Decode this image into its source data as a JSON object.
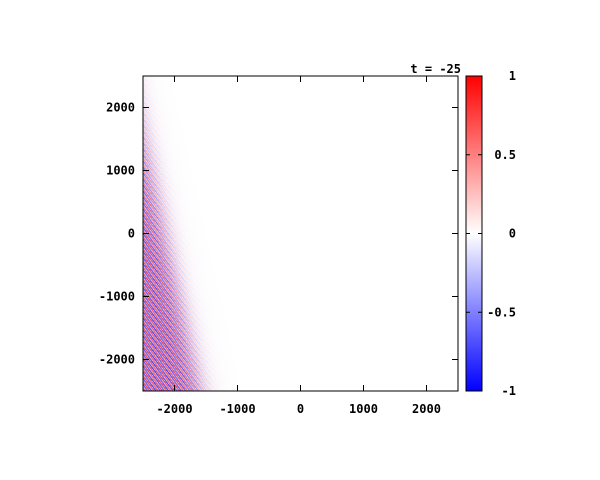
{
  "chart_data": {
    "type": "heatmap",
    "title": "t = -25",
    "xlabel": "",
    "ylabel": "",
    "xlim": [
      -2500,
      2500
    ],
    "ylim": [
      -2500,
      2500
    ],
    "x_ticks": [
      -2000,
      -1000,
      0,
      1000,
      2000
    ],
    "x_tick_labels": [
      "-2000",
      "-1000",
      "0",
      "1000",
      "2000"
    ],
    "y_ticks": [
      -2000,
      -1000,
      0,
      1000,
      2000
    ],
    "y_tick_labels": [
      "-2000",
      "-1000",
      "0",
      "1000",
      "2000"
    ],
    "grid": false,
    "colorbar": {
      "range": [
        -1,
        1
      ],
      "ticks": [
        -1,
        -0.5,
        0,
        0.5,
        1
      ],
      "tick_labels": [
        "-1",
        "-0.5",
        "0",
        "0.5",
        "1"
      ],
      "low_color": "#0000ff",
      "mid_color": "#ffffff",
      "high_color": "#ff0000"
    },
    "field": {
      "description_values": "oscillating wave packet confined to lower-left, amplitude decaying across a diagonal front",
      "front_points": [
        [
          -2500,
          1500
        ],
        [
          -1600,
          -2500
        ]
      ],
      "front_width": 300,
      "wavelength": 55,
      "orientation_deg": 35
    }
  }
}
